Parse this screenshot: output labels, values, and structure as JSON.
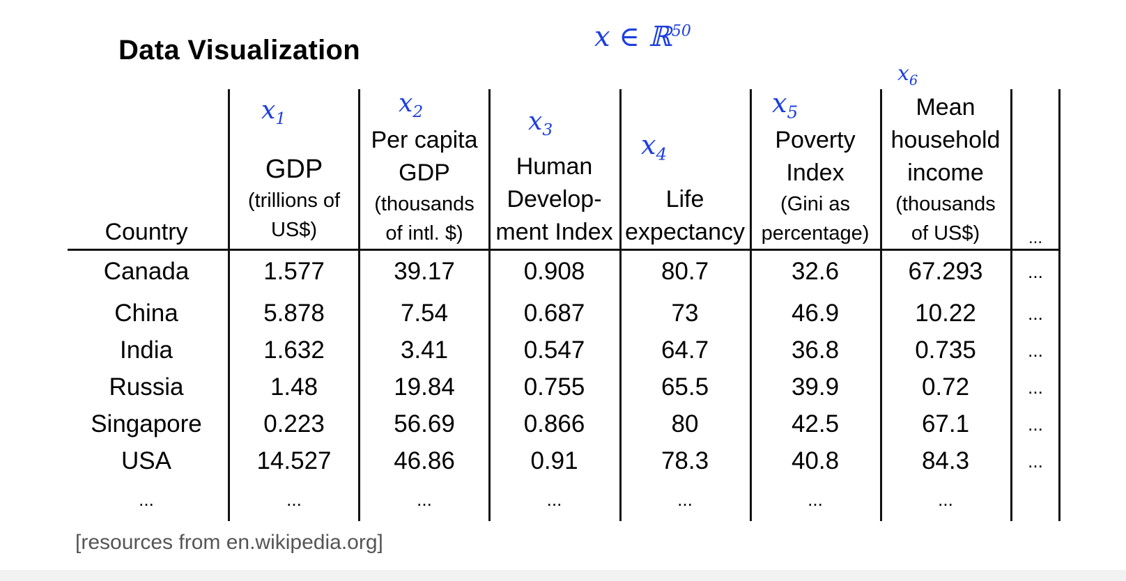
{
  "title": "Data Visualization",
  "source": "[resources from en.wikipedia.org]",
  "annotations": {
    "vector_space": "x ∈ ℝ",
    "vector_space_sup": "50",
    "features": [
      "x",
      "x",
      "x",
      "x",
      "x",
      "x"
    ],
    "feature_subs": [
      "1",
      "2",
      "3",
      "4",
      "5",
      "6"
    ]
  },
  "table": {
    "headers": [
      {
        "lines": [
          "Country"
        ]
      },
      {
        "main": "GDP",
        "sub": [
          "(trillions of",
          "US$)"
        ]
      },
      {
        "main": "Per capita",
        "main2": "GDP",
        "sub": [
          "(thousands",
          "of intl. $)"
        ]
      },
      {
        "lines": [
          "Human",
          "Develop-",
          "ment Index"
        ]
      },
      {
        "lines": [
          "Life",
          "expectancy"
        ]
      },
      {
        "main": "Poverty",
        "main2": "Index",
        "sub": [
          "(Gini as",
          "percentage)"
        ]
      },
      {
        "main": "Mean",
        "main2": "household",
        "main3": "income",
        "sub": [
          "(thousands",
          "of US$)"
        ]
      },
      {
        "lines": [
          "..."
        ]
      }
    ],
    "rows": [
      [
        "Canada",
        "1.577",
        "39.17",
        "0.908",
        "80.7",
        "32.6",
        "67.293",
        "..."
      ],
      [
        "China",
        "5.878",
        "7.54",
        "0.687",
        "73",
        "46.9",
        "10.22",
        "..."
      ],
      [
        "India",
        "1.632",
        "3.41",
        "0.547",
        "64.7",
        "36.8",
        "0.735",
        "..."
      ],
      [
        "Russia",
        "1.48",
        "19.84",
        "0.755",
        "65.5",
        "39.9",
        "0.72",
        "..."
      ],
      [
        "Singapore",
        "0.223",
        "56.69",
        "0.866",
        "80",
        "42.5",
        "67.1",
        "..."
      ],
      [
        "USA",
        "14.527",
        "46.86",
        "0.91",
        "78.3",
        "40.8",
        "84.3",
        "..."
      ],
      [
        "...",
        "...",
        "...",
        "...",
        "...",
        "...",
        "...",
        ""
      ]
    ]
  }
}
